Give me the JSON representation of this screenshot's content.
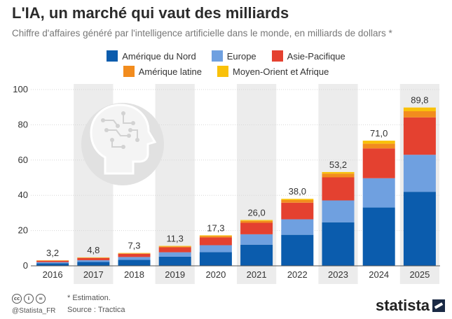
{
  "title": "L'IA, un marché qui vaut des milliards",
  "subtitle": "Chiffre d'affaires généré par l'intelligence artificielle dans le monde, en milliards de dollars *",
  "colors": {
    "north_america": "#0b5cad",
    "europe": "#6fa0e0",
    "asia_pacific": "#e44130",
    "latin_america": "#f28c1e",
    "mena": "#f9c10a",
    "column_shade": "#ececec",
    "grid": "#d6d6d6"
  },
  "footer": {
    "note": "* Estimation.",
    "source": "Source : Tractica",
    "handle": "@Statista_FR",
    "brand": "statista",
    "cc_icons": [
      "cc-icon",
      "by-icon",
      "nd-icon"
    ]
  },
  "decor": {
    "icon": "brain-head-icon"
  },
  "chart_data": {
    "type": "bar",
    "stacked": true,
    "categories": [
      "2016",
      "2017",
      "2018",
      "2019",
      "2020",
      "2021",
      "2022",
      "2023",
      "2024",
      "2025"
    ],
    "totals": [
      "3,2",
      "4,8",
      "7,3",
      "11,3",
      "17,3",
      "26,0",
      "38,0",
      "53,2",
      "71,0",
      "89,8"
    ],
    "series": [
      {
        "name": "Amérique du Nord",
        "color": "#0b5cad",
        "values": [
          1.4,
          2.2,
          3.4,
          5.2,
          7.8,
          12.0,
          17.6,
          24.7,
          33.1,
          42.0
        ]
      },
      {
        "name": "Europe",
        "color": "#6fa0e0",
        "values": [
          0.7,
          1.0,
          1.6,
          2.5,
          3.9,
          5.9,
          8.8,
          12.4,
          16.6,
          21.0
        ]
      },
      {
        "name": "Asie-Pacifique",
        "color": "#e44130",
        "values": [
          0.8,
          1.2,
          1.8,
          2.8,
          4.4,
          6.5,
          9.4,
          13.1,
          16.9,
          21.2
        ]
      },
      {
        "name": "Amérique latine",
        "color": "#f28c1e",
        "values": [
          0.2,
          0.3,
          0.3,
          0.5,
          0.8,
          1.1,
          1.5,
          2.1,
          2.7,
          3.5
        ]
      },
      {
        "name": "Moyen-Orient et Afrique",
        "color": "#f9c10a",
        "values": [
          0.1,
          0.1,
          0.2,
          0.3,
          0.4,
          0.5,
          0.7,
          0.9,
          1.7,
          2.1
        ]
      }
    ],
    "yticks": [
      "0",
      "20",
      "40",
      "60",
      "80",
      "100"
    ],
    "ylim": [
      0,
      100
    ],
    "grid": true,
    "shaded_columns": [
      "2017",
      "2019",
      "2021",
      "2023",
      "2025"
    ],
    "legend_position": "top"
  }
}
